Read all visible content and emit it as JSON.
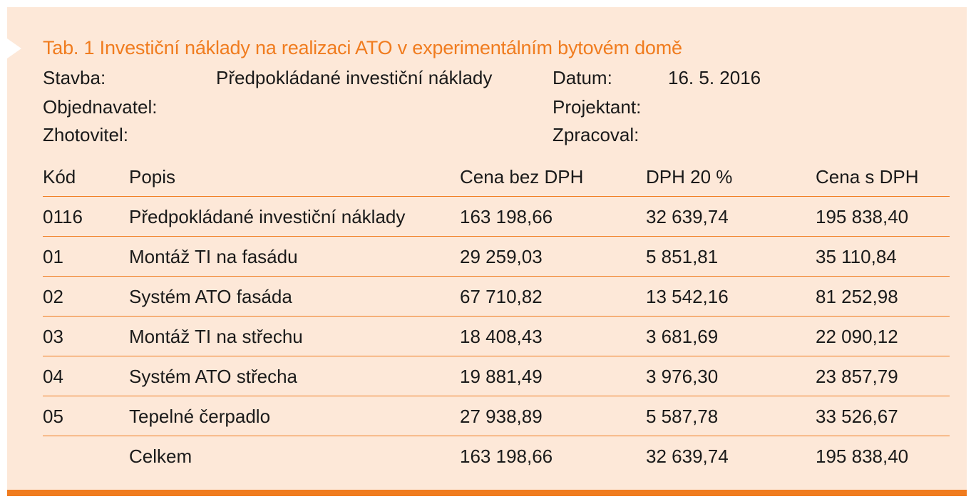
{
  "title": "Tab. 1  Investiční náklady na realizaci ATO v experimentálním bytovém domě",
  "meta": {
    "stavba_label": "Stavba:",
    "stavba_value": "Předpokládané investiční náklady",
    "datum_label": "Datum:",
    "datum_value": "16. 5. 2016",
    "objednavatel_label": "Objednavatel:",
    "projektant_label": "Projektant:",
    "zhotovitel_label": "Zhotovitel:",
    "zpracoval_label": "Zpracoval:"
  },
  "table": {
    "headers": {
      "kod": "Kód",
      "popis": "Popis",
      "cena_bez_dph": "Cena bez DPH",
      "dph": "DPH 20 %",
      "cena_s_dph": "Cena s DPH"
    },
    "rows": [
      {
        "kod": "0116",
        "popis": "Předpokládané investiční náklady",
        "cena_bez_dph": "163 198,66",
        "dph": "32 639,74",
        "cena_s_dph": "195 838,40"
      },
      {
        "kod": "01",
        "popis": "Montáž TI na fasádu",
        "cena_bez_dph": "29 259,03",
        "dph": "5 851,81",
        "cena_s_dph": "35 110,84"
      },
      {
        "kod": "02",
        "popis": "Systém ATO fasáda",
        "cena_bez_dph": "67 710,82",
        "dph": "13 542,16",
        "cena_s_dph": "81 252,98"
      },
      {
        "kod": "03",
        "popis": "Montáž TI na střechu",
        "cena_bez_dph": "18 408,43",
        "dph": "3 681,69",
        "cena_s_dph": "22 090,12"
      },
      {
        "kod": "04",
        "popis": "Systém ATO střecha",
        "cena_bez_dph": "19 881,49",
        "dph": "3 976,30",
        "cena_s_dph": "23 857,79"
      },
      {
        "kod": "05",
        "popis": "Tepelné čerpadlo",
        "cena_bez_dph": "27 938,89",
        "dph": "5 587,78",
        "cena_s_dph": "33 526,67"
      }
    ],
    "total": {
      "kod": "",
      "popis": "Celkem",
      "cena_bez_dph": "163 198,66",
      "dph": "32 639,74",
      "cena_s_dph": "195 838,40"
    }
  },
  "colors": {
    "accent": "#f07c1f",
    "background": "#fde8d8",
    "text": "#1a1a1a"
  }
}
